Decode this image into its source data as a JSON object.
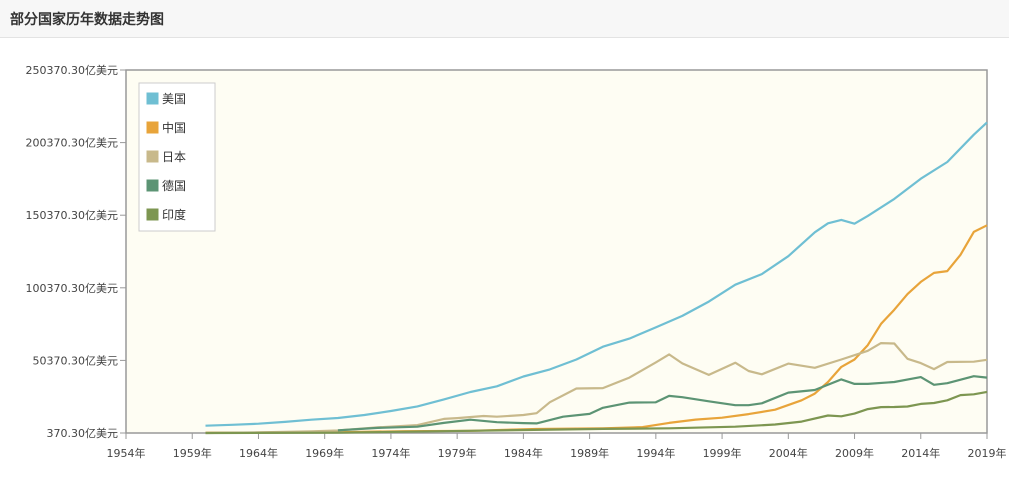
{
  "page": {
    "title": "部分国家历年数据走势图"
  },
  "colors": {
    "plot_bg": "#fefdf3",
    "axis": "#999999",
    "grid": "#e8e4d0"
  },
  "chart_data": {
    "type": "line",
    "title": "部分国家历年数据走势图",
    "ylim": [
      370.3,
      250370.3
    ],
    "y_ticks": [
      "370.30亿美元",
      "50370.30亿美元",
      "100370.30亿美元",
      "150370.30亿美元",
      "200370.30亿美元",
      "250370.30亿美元"
    ],
    "y_tick_values": [
      370.3,
      50370.3,
      100370.3,
      150370.3,
      200370.3,
      250370.3
    ],
    "xlim": [
      1954,
      2019
    ],
    "x_ticks": [
      "1954年",
      "1959年",
      "1964年",
      "1969年",
      "1974年",
      "1979年",
      "1984年",
      "1989年",
      "1994年",
      "1999年",
      "2004年",
      "2009年",
      "2014年",
      "2019年"
    ],
    "x_tick_values": [
      1954,
      1959,
      1964,
      1969,
      1974,
      1979,
      1984,
      1989,
      1994,
      1999,
      2004,
      2009,
      2014,
      2019
    ],
    "legend_position": "top-left",
    "grid": false,
    "series": [
      {
        "name": "美国",
        "color": "#6fbfd3",
        "x": [
          1960,
          1962,
          1964,
          1966,
          1968,
          1970,
          1972,
          1974,
          1976,
          1978,
          1980,
          1982,
          1984,
          1986,
          1988,
          1990,
          1992,
          1994,
          1996,
          1998,
          2000,
          2002,
          2004,
          2006,
          2007,
          2008,
          2009,
          2010,
          2012,
          2014,
          2016,
          2018,
          2019
        ],
        "y": [
          5400,
          6000,
          6800,
          8000,
          9500,
          10700,
          12800,
          15500,
          18700,
          23500,
          28600,
          32500,
          39300,
          44200,
          51000,
          59800,
          65400,
          73100,
          81000,
          90900,
          102500,
          109800,
          122100,
          138600,
          144800,
          147100,
          144500,
          149900,
          161600,
          175500,
          187000,
          205800,
          214300
        ]
      },
      {
        "name": "中国",
        "color": "#e8a43a",
        "x": [
          1960,
          1965,
          1970,
          1975,
          1980,
          1985,
          1990,
          1993,
          1995,
          1997,
          1999,
          2001,
          2003,
          2005,
          2006,
          2007,
          2008,
          2009,
          2010,
          2011,
          2012,
          2013,
          2014,
          2015,
          2016,
          2017,
          2018,
          2019
        ],
        "y": [
          600,
          700,
          900,
          1600,
          1900,
          3100,
          3600,
          4400,
          7300,
          9600,
          10900,
          13400,
          16400,
          22900,
          27500,
          35500,
          45900,
          51000,
          60900,
          75500,
          85300,
          96000,
          104400,
          110600,
          111900,
          123100,
          138900,
          143400
        ]
      },
      {
        "name": "日本",
        "color": "#c8b98b",
        "x": [
          1960,
          1964,
          1968,
          1970,
          1973,
          1976,
          1978,
          1979,
          1981,
          1982,
          1984,
          1985,
          1986,
          1988,
          1990,
          1992,
          1994,
          1995,
          1996,
          1998,
          2000,
          2001,
          2002,
          2004,
          2006,
          2008,
          2010,
          2011,
          2012,
          2013,
          2014,
          2015,
          2016,
          2018,
          2019
        ],
        "y": [
          400,
          800,
          1500,
          2100,
          4200,
          5800,
          10100,
          10600,
          12100,
          11600,
          12800,
          14000,
          21600,
          31000,
          31300,
          38500,
          49000,
          54500,
          48300,
          40400,
          48800,
          43100,
          40800,
          48200,
          45300,
          51000,
          57000,
          62300,
          62000,
          51500,
          48500,
          44400,
          49300,
          49500,
          50800
        ]
      },
      {
        "name": "德国",
        "color": "#5c9474",
        "x": [
          1970,
          1973,
          1976,
          1978,
          1980,
          1982,
          1984,
          1985,
          1987,
          1989,
          1990,
          1992,
          1994,
          1995,
          1996,
          1998,
          2000,
          2001,
          2002,
          2004,
          2006,
          2008,
          2009,
          2010,
          2012,
          2014,
          2015,
          2016,
          2018,
          2019
        ],
        "y": [
          2200,
          3900,
          4700,
          7300,
          9500,
          7800,
          7200,
          7000,
          11600,
          13500,
          17700,
          21300,
          21500,
          25900,
          25000,
          22200,
          19500,
          19500,
          20800,
          28200,
          30000,
          37300,
          34200,
          34200,
          35500,
          38900,
          33600,
          34700,
          39500,
          38500
        ]
      },
      {
        "name": "印度",
        "color": "#7d9651",
        "x": [
          1960,
          1970,
          1980,
          1990,
          1995,
          2000,
          2003,
          2005,
          2007,
          2008,
          2009,
          2010,
          2011,
          2012,
          2013,
          2014,
          2015,
          2016,
          2017,
          2018,
          2019
        ],
        "y": [
          400,
          600,
          1900,
          3200,
          3600,
          4700,
          6200,
          8200,
          12400,
          11900,
          13700,
          16800,
          18200,
          18300,
          18600,
          20400,
          21000,
          22900,
          26500,
          27000,
          28700
        ]
      }
    ]
  }
}
